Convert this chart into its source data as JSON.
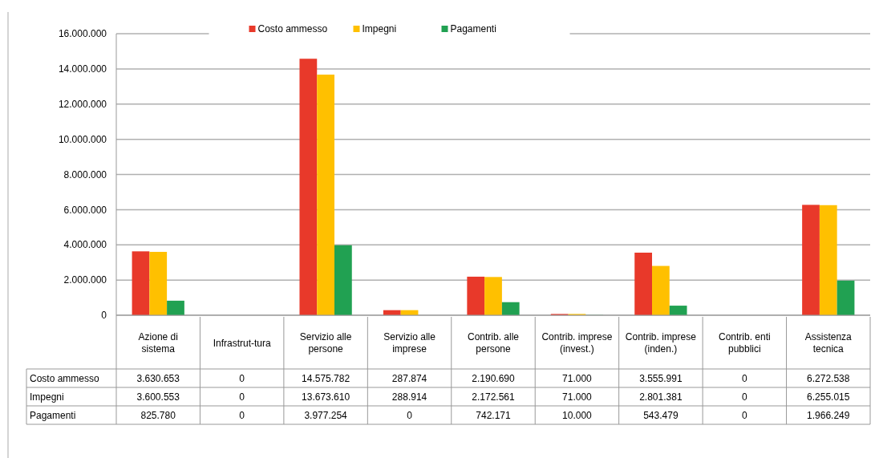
{
  "chart_data": {
    "type": "bar",
    "categories": [
      "Azione di sistema",
      "Infrastrut-tura",
      "Servizio alle persone",
      "Servizio alle imprese",
      "Contrib. alle persone",
      "Contrib. imprese (invest.)",
      "Contrib. imprese (inden.)",
      "Contrib. enti pubblici",
      "Assistenza tecnica"
    ],
    "series": [
      {
        "name": "Costo ammesso",
        "color": "#e8392a",
        "values": [
          3630653,
          0,
          14575782,
          287874,
          2190690,
          71000,
          3555991,
          0,
          6272538
        ],
        "value_labels": [
          "3.630.653",
          "0",
          "14.575.782",
          "287.874",
          "2.190.690",
          "71.000",
          "3.555.991",
          "0",
          "6.272.538"
        ]
      },
      {
        "name": "Impegni",
        "color": "#ffc000",
        "values": [
          3600553,
          0,
          13673610,
          288914,
          2172561,
          71000,
          2801381,
          0,
          6255015
        ],
        "value_labels": [
          "3.600.553",
          "0",
          "13.673.610",
          "288.914",
          "2.172.561",
          "71.000",
          "2.801.381",
          "0",
          "6.255.015"
        ]
      },
      {
        "name": "Pagamenti",
        "color": "#21a152",
        "values": [
          825780,
          0,
          3977254,
          0,
          742171,
          10000,
          543479,
          0,
          1966249
        ],
        "value_labels": [
          "825.780",
          "0",
          "3.977.254",
          "0",
          "742.171",
          "10.000",
          "543.479",
          "0",
          "1.966.249"
        ]
      }
    ],
    "ylim": [
      0,
      16000000
    ],
    "yticks": [
      {
        "value": 0,
        "label": "0"
      },
      {
        "value": 2000000,
        "label": "2.000.000"
      },
      {
        "value": 4000000,
        "label": "4.000.000"
      },
      {
        "value": 6000000,
        "label": "6.000.000"
      },
      {
        "value": 8000000,
        "label": "8.000.000"
      },
      {
        "value": 10000000,
        "label": "10.000.000"
      },
      {
        "value": 12000000,
        "label": "12.000.000"
      },
      {
        "value": 14000000,
        "label": "14.000.000"
      },
      {
        "value": 16000000,
        "label": "16.000.000"
      }
    ],
    "grid": "y",
    "legend": "top"
  }
}
